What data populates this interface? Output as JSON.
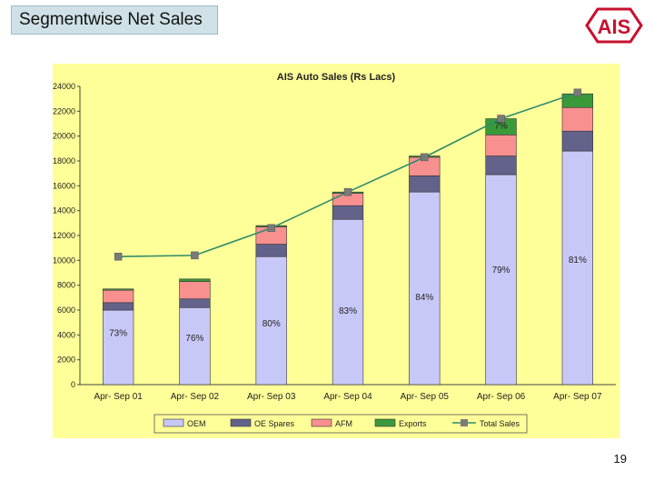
{
  "slide": {
    "title": "Segmentwise Net Sales",
    "page_number": "19"
  },
  "logo": {
    "text": "AIS",
    "color": "#c8102e"
  },
  "chart_data": {
    "type": "bar",
    "stacked": true,
    "title": "AIS Auto Sales (Rs Lacs)",
    "categories": [
      "Apr- Sep 01",
      "Apr- Sep 02",
      "Apr- Sep 03",
      "Apr- Sep 04",
      "Apr- Sep 05",
      "Apr- Sep 06",
      "Apr- Sep 07"
    ],
    "ylim": [
      0,
      24000
    ],
    "yticks": [
      "0",
      "2000",
      "4000",
      "6000",
      "8000",
      "10000",
      "12000",
      "14000",
      "16000",
      "18000",
      "20000",
      "22000",
      "24000"
    ],
    "series": [
      {
        "name": "OEM",
        "color": "#c8c8f8",
        "values": [
          6000,
          6200,
          10300,
          13300,
          15500,
          16900,
          18800
        ]
      },
      {
        "name": "OE Spares",
        "color": "#62628a",
        "values": [
          600,
          700,
          1000,
          1100,
          1300,
          1500,
          1600
        ]
      },
      {
        "name": "AFM",
        "color": "#f99090",
        "values": [
          1000,
          1400,
          1400,
          1000,
          1500,
          1700,
          1900
        ]
      },
      {
        "name": "Exports",
        "color": "#3a9a3a",
        "values": [
          100,
          200,
          100,
          100,
          100,
          1300,
          1100
        ]
      }
    ],
    "line_series": {
      "name": "Total Sales",
      "color": "#2e8b6e",
      "marker_color": "#7a7a7a",
      "values": [
        10300,
        10400,
        12600,
        15500,
        18300,
        21400,
        23500
      ]
    },
    "annotations": [
      {
        "text": "73%",
        "category": 0,
        "y": 3900
      },
      {
        "text": "76%",
        "category": 1,
        "y": 3500
      },
      {
        "text": "80%",
        "category": 2,
        "y": 4700
      },
      {
        "text": "83%",
        "category": 3,
        "y": 5700
      },
      {
        "text": "84%",
        "category": 4,
        "y": 6800
      },
      {
        "text": "79%",
        "category": 5,
        "y": 9000
      },
      {
        "text": "81%",
        "category": 6,
        "y": 9800
      },
      {
        "text": "7%",
        "category": 5,
        "y": 20600
      }
    ],
    "legend_position": "bottom",
    "background": "#ffff99",
    "grid": false
  }
}
